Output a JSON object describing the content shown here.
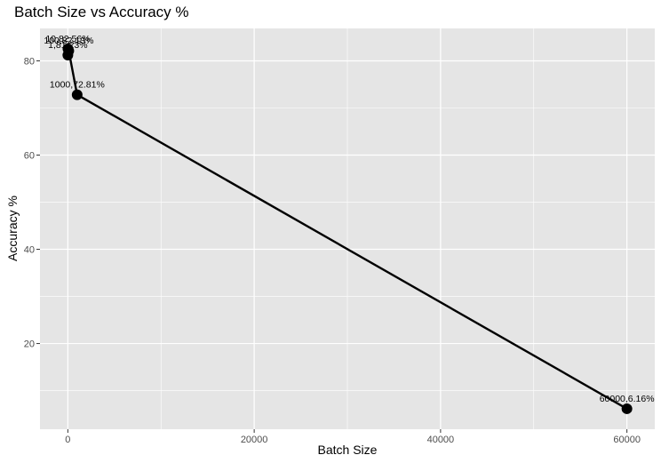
{
  "chart_data": {
    "type": "line",
    "title": "Batch Size vs Accuracy %",
    "xlabel": "Batch Size",
    "ylabel": "Accuracy %",
    "xlim": [
      -2990,
      62990
    ],
    "ylim": [
      1.81,
      86.88
    ],
    "x_ticks": [
      0,
      20000,
      40000,
      60000
    ],
    "x_tick_labels": [
      "0",
      "20000",
      "40000",
      "60000"
    ],
    "x_minor_ticks": [
      10000,
      30000,
      50000
    ],
    "y_ticks": [
      20,
      40,
      60,
      80
    ],
    "y_tick_labels": [
      "20",
      "40",
      "60",
      "80"
    ],
    "y_minor_ticks": [
      10,
      30,
      50,
      70
    ],
    "grid": true,
    "legend": "none",
    "colors": {
      "panel": "#e5e5e5",
      "grid": "#ffffff",
      "line": "#000000",
      "point": "#000000"
    },
    "series": [
      {
        "x": [
          1,
          10,
          100,
          1000,
          60000
        ],
        "values": [
          81.23,
          82.56,
          82.13,
          72.81,
          6.16
        ],
        "labels": [
          "1,81.23%",
          "10,82.56%",
          "100,82.13%",
          "1000,72.81%",
          "60000,6.16%"
        ]
      }
    ]
  }
}
